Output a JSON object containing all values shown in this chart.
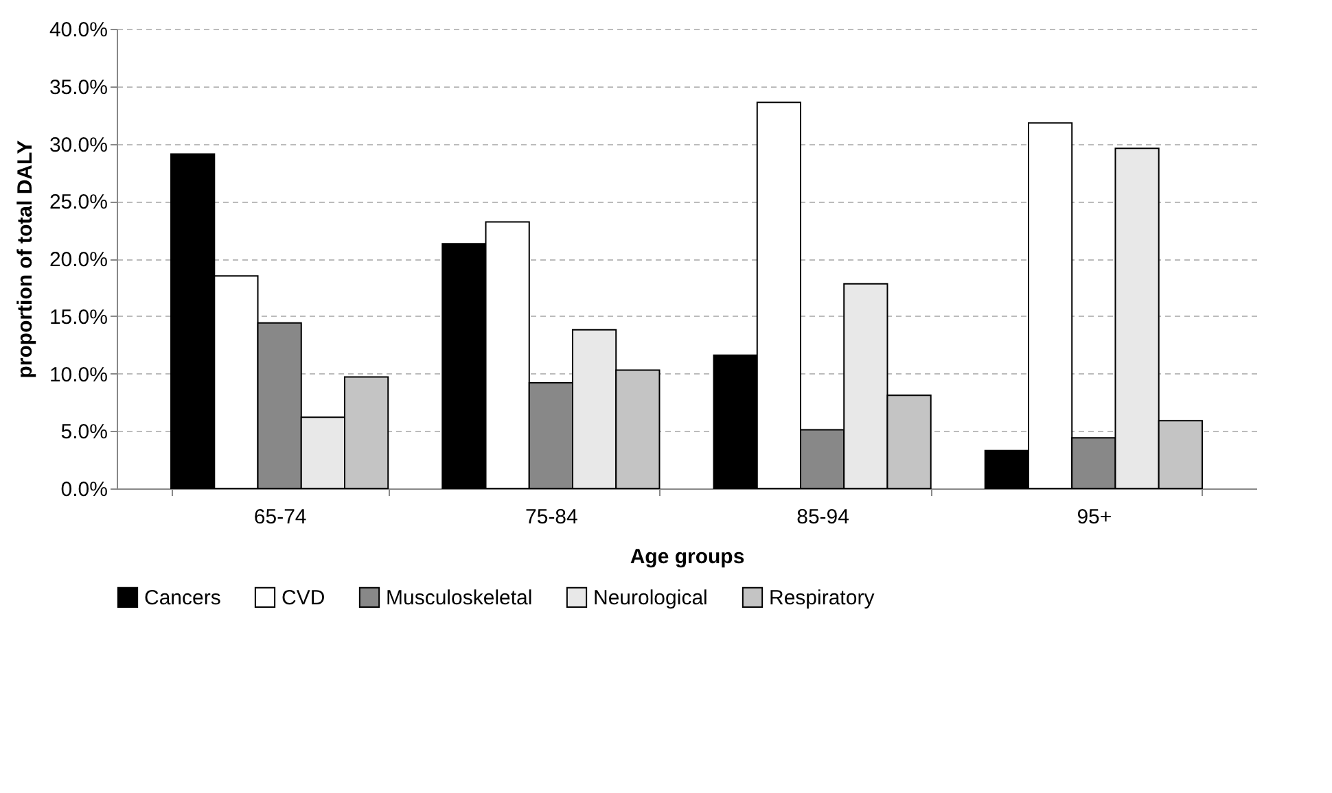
{
  "chart_data": {
    "type": "bar",
    "xlabel": "Age groups",
    "ylabel": "proportion of total DALY",
    "categories": [
      "65-74",
      "75-84",
      "85-94",
      "95+"
    ],
    "series": [
      {
        "name": "Cancers",
        "color": "#000000",
        "values": [
          29.1,
          21.3,
          11.6,
          3.3
        ]
      },
      {
        "name": "CVD",
        "color": "#ffffff",
        "values": [
          18.5,
          23.2,
          33.6,
          31.8
        ]
      },
      {
        "name": "Musculoskeletal",
        "color": "#888888",
        "values": [
          14.4,
          9.2,
          5.1,
          4.4
        ]
      },
      {
        "name": "Neurological",
        "color": "#e8e8e8",
        "values": [
          6.2,
          13.8,
          17.8,
          29.6
        ]
      },
      {
        "name": "Respiratory",
        "color": "#c4c4c4",
        "values": [
          9.7,
          10.3,
          8.1,
          5.9
        ]
      }
    ],
    "ylim": [
      0,
      40
    ],
    "yticks": [
      {
        "value": 0,
        "label": "0.0%"
      },
      {
        "value": 5,
        "label": "5.0%"
      },
      {
        "value": 10,
        "label": "10.0%"
      },
      {
        "value": 15,
        "label": "15.0%"
      },
      {
        "value": 20,
        "label": "20.0%"
      },
      {
        "value": 25,
        "label": "25.0%"
      },
      {
        "value": 30,
        "label": "30.0%"
      },
      {
        "value": 35,
        "label": "35.0%"
      },
      {
        "value": 40,
        "label": "40.0%"
      }
    ],
    "grid": "y",
    "legend": "bottom"
  }
}
